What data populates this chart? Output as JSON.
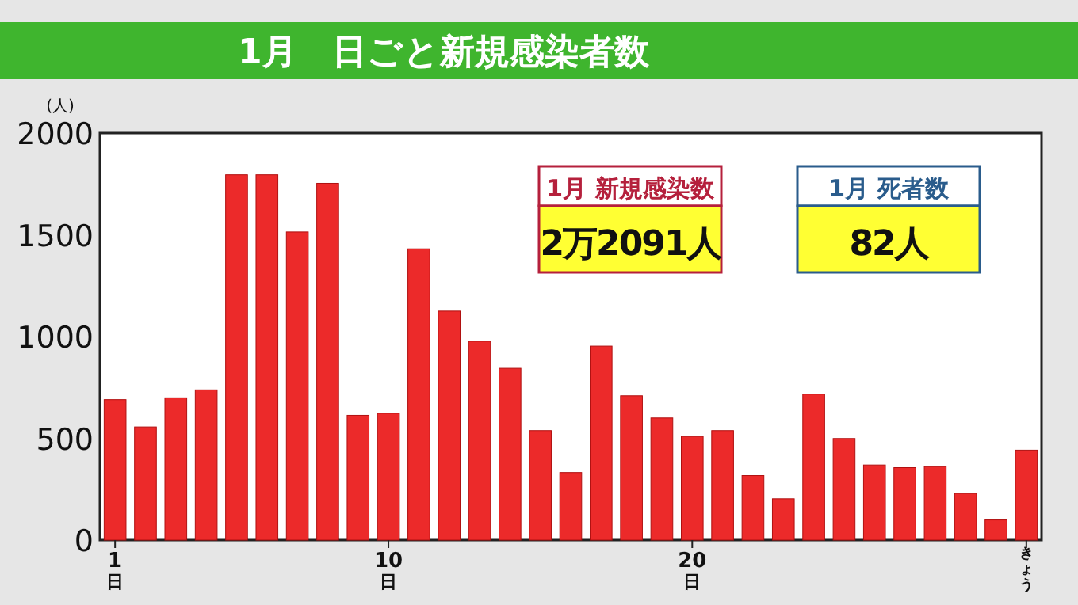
{
  "chart_data": {
    "type": "bar",
    "title": "1月　日ごと新規感染者数",
    "ylabel": "(人)",
    "categories": [
      "1日",
      null,
      null,
      null,
      null,
      null,
      null,
      null,
      null,
      "10日",
      null,
      null,
      null,
      null,
      null,
      null,
      null,
      null,
      null,
      "20日",
      null,
      null,
      null,
      null,
      null,
      null,
      null,
      null,
      null,
      null,
      "きょう"
    ],
    "values": [
      690,
      556,
      699,
      738,
      1795,
      1795,
      1514,
      1753,
      613,
      623,
      1431,
      1125,
      977,
      844,
      538,
      332,
      953,
      709,
      600,
      509,
      538,
      317,
      203,
      717,
      499,
      369,
      356,
      361,
      229,
      99,
      442
    ],
    "color": "#ec2a2a",
    "ylim": [
      0,
      2000
    ],
    "yticks": [
      0,
      500,
      1000,
      1500,
      2000
    ],
    "annotations": [
      "1月 新規感染数",
      "2万2091人",
      "1月 死者数",
      "82人"
    ]
  }
}
